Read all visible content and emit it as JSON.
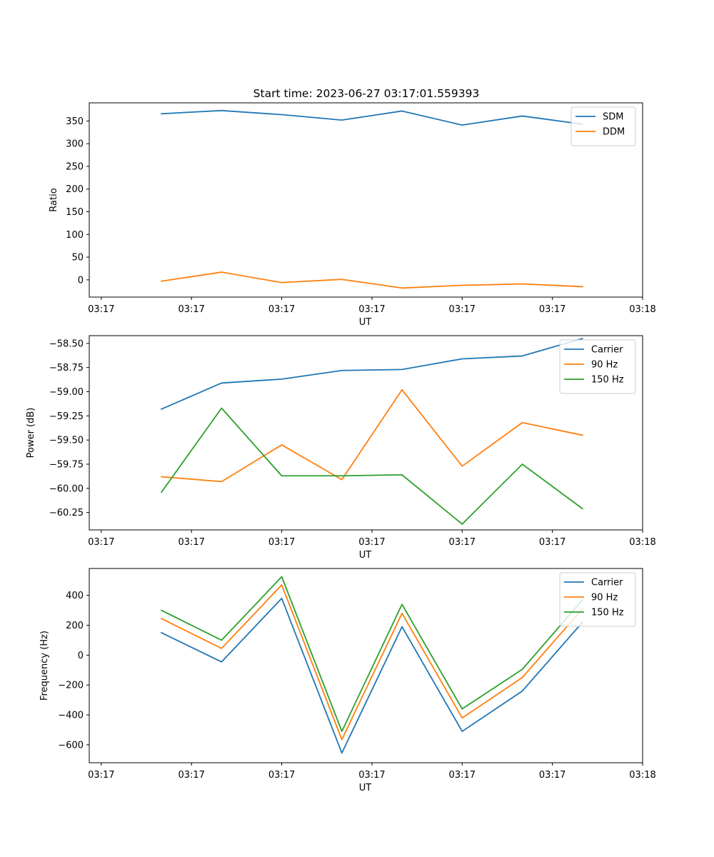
{
  "figure": {
    "title": "Start time: 2023-06-27 03:17:01.559393"
  },
  "colors": {
    "series_1": "#1f77b4",
    "series_2": "#ff7f0e",
    "series_3": "#2ca02c"
  },
  "chart_data": [
    {
      "type": "line",
      "title": "Start time: 2023-06-27 03:17:01.559393",
      "xlabel": "UT",
      "ylabel": "Ratio",
      "x": [
        1,
        2,
        3,
        4,
        5,
        6,
        7,
        8
      ],
      "x_ticks": [
        0,
        1.5,
        3,
        4.5,
        6,
        7.5,
        9
      ],
      "x_tick_labels": [
        "03:17",
        "03:17",
        "03:17",
        "03:17",
        "03:17",
        "03:17",
        "03:18"
      ],
      "xlim": [
        -0.2,
        9.0
      ],
      "ylim": [
        -38,
        390
      ],
      "y_ticks": [
        0,
        50,
        100,
        150,
        200,
        250,
        300,
        350
      ],
      "y_tick_labels": [
        "0",
        "50",
        "100",
        "150",
        "200",
        "250",
        "300",
        "350"
      ],
      "legend": "top-right",
      "grid": false,
      "series": [
        {
          "name": "SDM",
          "color": "#1f77b4",
          "values": [
            366,
            373,
            364,
            352,
            372,
            341,
            361,
            343
          ]
        },
        {
          "name": "DDM",
          "color": "#ff7f0e",
          "values": [
            -3,
            17,
            -6,
            1,
            -18,
            -12,
            -9,
            -15
          ]
        }
      ]
    },
    {
      "type": "line",
      "title": "",
      "xlabel": "UT",
      "ylabel": "Power (dB)",
      "x": [
        1,
        2,
        3,
        4,
        5,
        6,
        7,
        8
      ],
      "x_ticks": [
        0,
        1.5,
        3,
        4.5,
        6,
        7.5,
        9
      ],
      "x_tick_labels": [
        "03:17",
        "03:17",
        "03:17",
        "03:17",
        "03:17",
        "03:17",
        "03:18"
      ],
      "xlim": [
        -0.2,
        9.0
      ],
      "ylim": [
        -60.43,
        -58.42
      ],
      "y_ticks": [
        -60.25,
        -60.0,
        -59.75,
        -59.5,
        -59.25,
        -59.0,
        -58.75,
        -58.5
      ],
      "y_tick_labels": [
        "−60.25",
        "−60.00",
        "−59.75",
        "−59.50",
        "−59.25",
        "−59.00",
        "−58.75",
        "−58.50"
      ],
      "legend": "top-right",
      "grid": false,
      "series": [
        {
          "name": "Carrier",
          "color": "#1f77b4",
          "values": [
            -59.18,
            -58.91,
            -58.87,
            -58.78,
            -58.77,
            -58.66,
            -58.63,
            -58.45
          ]
        },
        {
          "name": "90 Hz",
          "color": "#ff7f0e",
          "values": [
            -59.88,
            -59.93,
            -59.55,
            -59.91,
            -58.98,
            -59.77,
            -59.32,
            -59.45
          ]
        },
        {
          "name": "150 Hz",
          "color": "#2ca02c",
          "values": [
            -60.04,
            -59.17,
            -59.87,
            -59.87,
            -59.86,
            -60.37,
            -59.75,
            -60.21
          ]
        }
      ]
    },
    {
      "type": "line",
      "title": "",
      "xlabel": "UT",
      "ylabel": "Frequency (Hz)",
      "x": [
        1,
        2,
        3,
        4,
        5,
        6,
        7,
        8
      ],
      "x_ticks": [
        0,
        1.5,
        3,
        4.5,
        6,
        7.5,
        9
      ],
      "x_tick_labels": [
        "03:17",
        "03:17",
        "03:17",
        "03:17",
        "03:17",
        "03:17",
        "03:18"
      ],
      "xlim": [
        -0.2,
        9.0
      ],
      "ylim": [
        -720,
        580
      ],
      "y_ticks": [
        -600,
        -400,
        -200,
        0,
        200,
        400
      ],
      "y_tick_labels": [
        "−600",
        "−400",
        "−200",
        "0",
        "200",
        "400"
      ],
      "legend": "top-right",
      "grid": false,
      "series": [
        {
          "name": "Carrier",
          "color": "#1f77b4",
          "values": [
            150,
            -45,
            380,
            -655,
            190,
            -510,
            -240,
            220
          ]
        },
        {
          "name": "90 Hz",
          "color": "#ff7f0e",
          "values": [
            245,
            45,
            470,
            -565,
            280,
            -420,
            -150,
            310
          ]
        },
        {
          "name": "150 Hz",
          "color": "#2ca02c",
          "values": [
            300,
            100,
            525,
            -510,
            340,
            -360,
            -95,
            370
          ]
        }
      ]
    }
  ]
}
